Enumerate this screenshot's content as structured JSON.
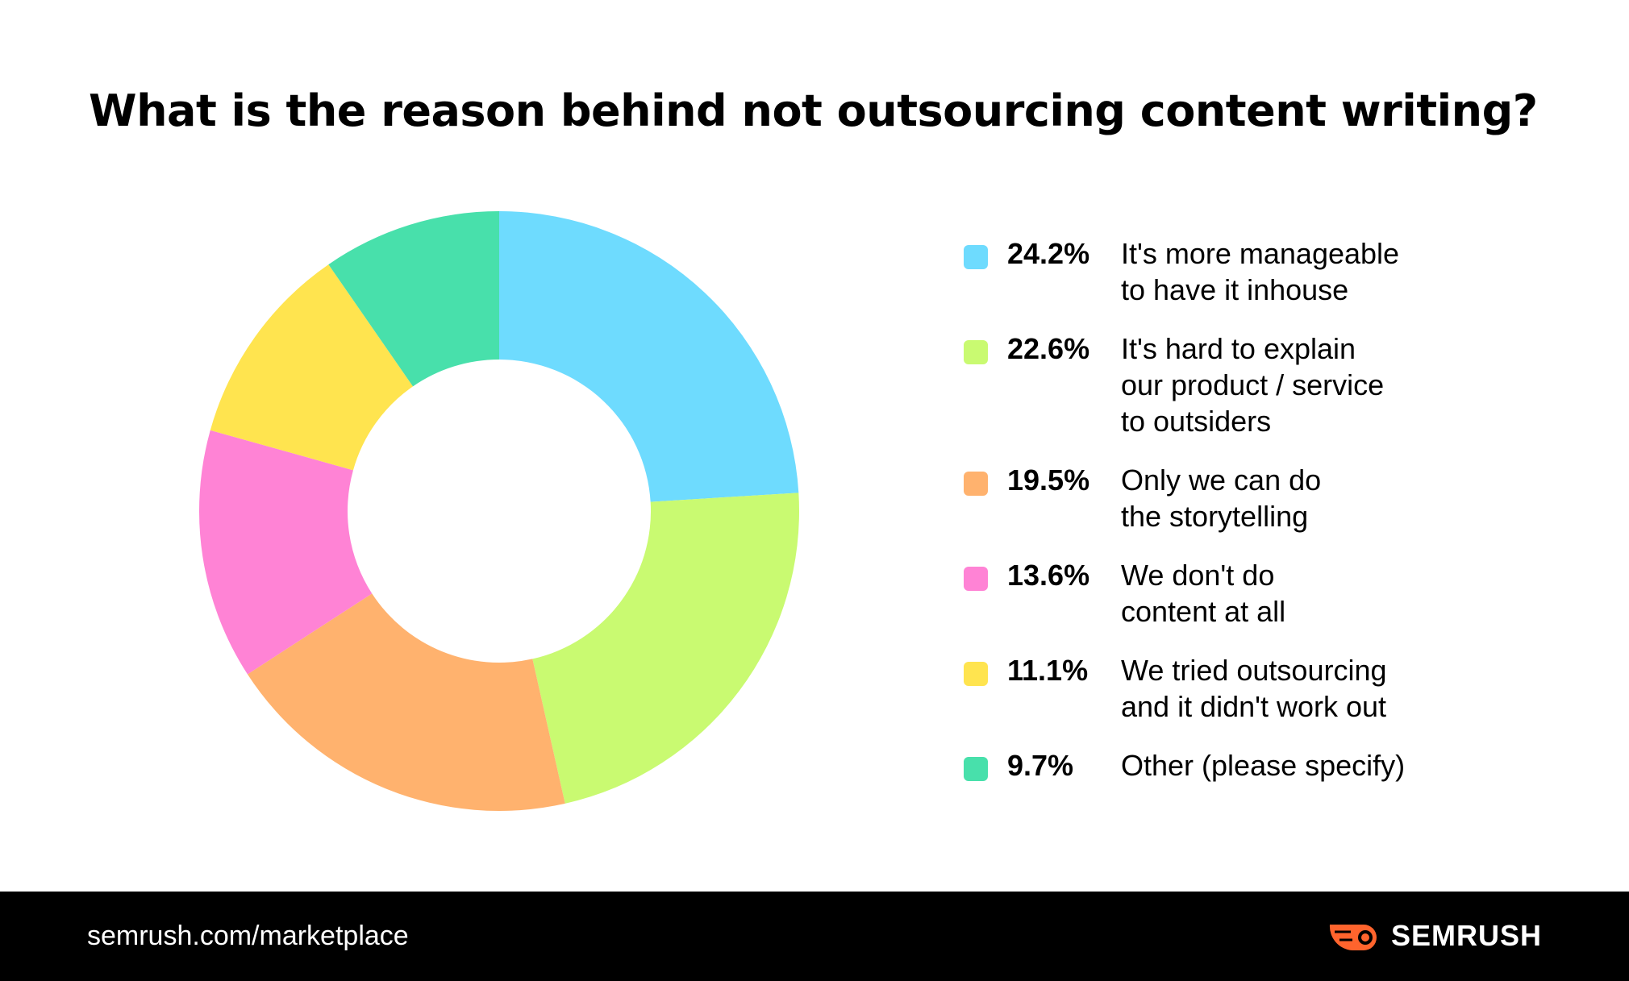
{
  "title": "What is the reason behind not outsourcing content writing?",
  "chart_data": {
    "type": "pie",
    "donut": true,
    "title": "What is the reason behind not outsourcing content writing?",
    "legend_position": "right",
    "slices": [
      {
        "value": 24.2,
        "value_label": "24.2%",
        "label_lines": [
          "It's more manageable",
          "to have it inhouse"
        ],
        "color": "#6EDBFE"
      },
      {
        "value": 22.6,
        "value_label": "22.6%",
        "label_lines": [
          "It's hard to explain",
          "our product / service",
          "to outsiders"
        ],
        "color": "#C9FA71"
      },
      {
        "value": 19.5,
        "value_label": "19.5%",
        "label_lines": [
          "Only we can do",
          "the storytelling"
        ],
        "color": "#FFB26E"
      },
      {
        "value": 13.6,
        "value_label": "13.6%",
        "label_lines": [
          "We don't do",
          "content at all"
        ],
        "color": "#FF83D5"
      },
      {
        "value": 11.1,
        "value_label": "11.1%",
        "label_lines": [
          "We tried outsourcing",
          "and it didn't work out"
        ],
        "color": "#FFE44F"
      },
      {
        "value": 9.7,
        "value_label": "9.7%",
        "label_lines": [
          "Other (please specify)"
        ],
        "color": "#48E0AB"
      }
    ]
  },
  "footer": {
    "url": "semrush.com/marketplace",
    "brand": "SEMRUSH",
    "brand_color": "#FF642D",
    "background": "#000000"
  }
}
